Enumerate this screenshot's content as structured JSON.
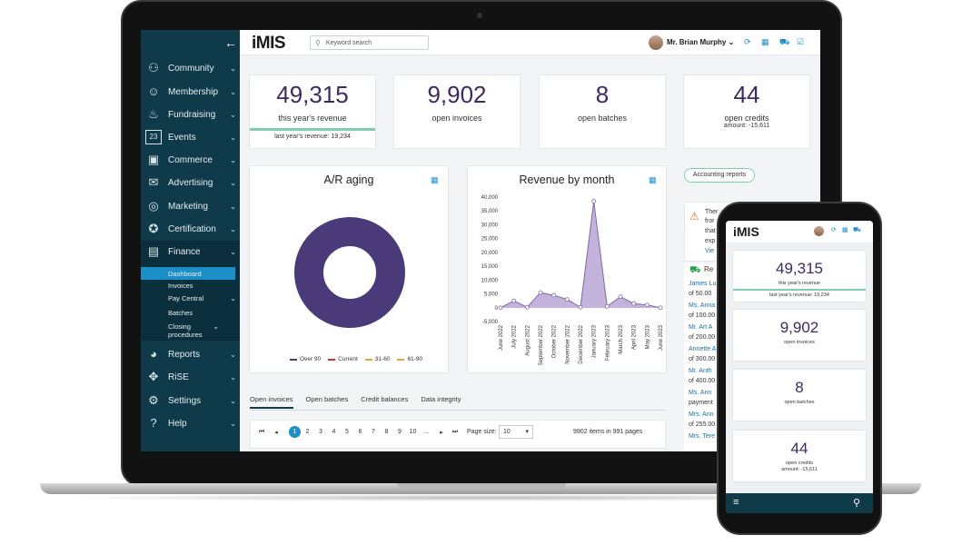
{
  "sidebar": {
    "items": [
      {
        "label": "Community",
        "icon": "community-icon",
        "glyph": "⚇"
      },
      {
        "label": "Membership",
        "icon": "membership-icon",
        "glyph": "☺"
      },
      {
        "label": "Fundraising",
        "icon": "fundraising-icon",
        "glyph": "♨"
      },
      {
        "label": "Events",
        "icon": "calendar-icon",
        "glyph": "23"
      },
      {
        "label": "Commerce",
        "icon": "commerce-icon",
        "glyph": "▣"
      },
      {
        "label": "Advertising",
        "icon": "megaphone-icon",
        "glyph": "✉"
      },
      {
        "label": "Marketing",
        "icon": "target-icon",
        "glyph": "◎"
      },
      {
        "label": "Certification",
        "icon": "certificate-icon",
        "glyph": "✪"
      },
      {
        "label": "Finance",
        "icon": "finance-icon",
        "glyph": "▤"
      },
      {
        "label": "Reports",
        "icon": "pie-chart-icon",
        "glyph": "◕"
      },
      {
        "label": "RiSE",
        "icon": "rise-icon",
        "glyph": "✥"
      },
      {
        "label": "Settings",
        "icon": "gear-icon",
        "glyph": "⚙"
      },
      {
        "label": "Help",
        "icon": "help-icon",
        "glyph": "?"
      }
    ],
    "finance_sub": [
      "Dashboard",
      "Invoices",
      "Pay Central",
      "Batches",
      "Closing procedures"
    ]
  },
  "header": {
    "logo": "iMIS",
    "search_placeholder": "Keyword search",
    "user_name": "Mr. Brian Murphy"
  },
  "stats": [
    {
      "value": "49,315",
      "label": "this year's revenue",
      "sub": "last year's revenue: 19,234"
    },
    {
      "value": "9,902",
      "label": "open invoices",
      "sub": ""
    },
    {
      "value": "8",
      "label": "open batches",
      "sub": ""
    },
    {
      "value": "44",
      "label": "open credits",
      "sub": "amount: -15,611"
    }
  ],
  "ar_aging": {
    "title": "A/R aging",
    "legend": [
      "Over 90",
      "Current",
      "31-60",
      "61-90"
    ],
    "colors": [
      "#4b3a7a",
      "#c0392b",
      "#e6a23c",
      "#e6a23c"
    ]
  },
  "accounting_reports_label": "Accounting reports",
  "alert_lines": [
    "Ther",
    "fror",
    "that",
    "exp",
    "Vie"
  ],
  "recent_title": "Re",
  "recent": [
    {
      "name": "James Lu",
      "amount": "of 50.00"
    },
    {
      "name": "Ms. Anna",
      "amount": "of 100.00"
    },
    {
      "name": "Mr. Art A",
      "amount": "of 200.00"
    },
    {
      "name": "Annette A",
      "amount": "of 300.00"
    },
    {
      "name": "Mr. Anth",
      "amount": "of 400.00"
    },
    {
      "name": "Ms. Ann",
      "amount": "payment"
    },
    {
      "name": "Mrs. Ann",
      "amount": "of 255.00"
    },
    {
      "name": "Mrs. Tere",
      "amount": ""
    }
  ],
  "tabs": [
    "Open invoices",
    "Open batches",
    "Credit balances",
    "Data integrity"
  ],
  "pager": {
    "pages": [
      "1",
      "2",
      "3",
      "4",
      "5",
      "6",
      "7",
      "8",
      "9",
      "10",
      "..."
    ],
    "page_size_label": "Page size:",
    "page_size": "10",
    "info": "9902 items in 991 pages"
  },
  "phone": {
    "logo": "iMIS",
    "stats": [
      {
        "value": "49,315",
        "label": "this year's revenue",
        "sub": "last year's revenue: 19,234"
      },
      {
        "value": "9,902",
        "label": "open invoices",
        "sub": ""
      },
      {
        "value": "8",
        "label": "open batches",
        "sub": ""
      },
      {
        "value": "44",
        "label": "open credits",
        "sub": "amount: -15,611"
      }
    ]
  },
  "chart_data": {
    "type": "area",
    "title": "Revenue by month",
    "xlabel": "",
    "ylabel": "",
    "categories": [
      "June 2022",
      "July 2022",
      "August 2022",
      "September 2022",
      "October 2022",
      "November 2022",
      "December 2022",
      "January 2023",
      "February 2023",
      "March 2023",
      "April 2023",
      "May 2023",
      "June 2023"
    ],
    "values": [
      0,
      2500,
      200,
      5500,
      4500,
      3000,
      200,
      38500,
      500,
      4000,
      1500,
      1000,
      0
    ],
    "yticks": [
      "40,000",
      "35,000",
      "30,000",
      "25,000",
      "20,000",
      "15,000",
      "10,000",
      "5,000",
      "0",
      "-5,000"
    ],
    "ylim": [
      -5000,
      40000
    ],
    "color": "#b9a6d3",
    "line_color": "#7d68a8"
  }
}
